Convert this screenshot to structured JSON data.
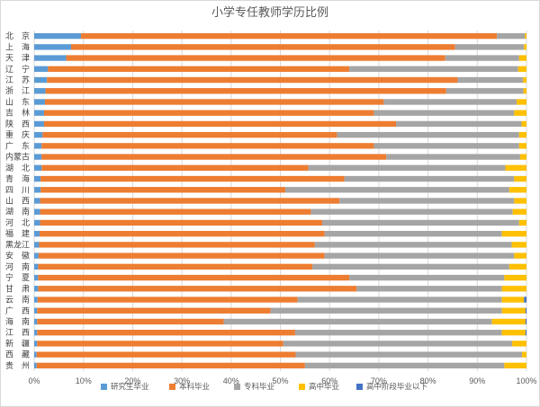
{
  "chart_data": {
    "type": "bar",
    "orientation": "horizontal",
    "stacked": "percent",
    "title": "小学专任教师学历比例",
    "xlim": [
      0,
      100
    ],
    "x_ticks": [
      "0%",
      "10%",
      "20%",
      "30%",
      "40%",
      "50%",
      "60%",
      "70%",
      "80%",
      "90%",
      "100%"
    ],
    "grid": "vertical",
    "legend_position": "bottom",
    "categories": [
      "北　京",
      "上　海",
      "天　津",
      "辽　宁",
      "江　苏",
      "浙　江",
      "山　东",
      "吉　林",
      "陕　西",
      "重　庆",
      "广　东",
      "内蒙古",
      "湖　北",
      "青　海",
      "四　川",
      "山　西",
      "湖　南",
      "河　北",
      "福　建",
      "黑龙江",
      "安　徽",
      "河　南",
      "宁　夏",
      "甘　肃",
      "云　南",
      "广　西",
      "海　南",
      "江　西",
      "新　疆",
      "西　藏",
      "贵　州"
    ],
    "series": [
      {
        "name": "研究生毕业",
        "color": "#5b9bd5",
        "values": [
          9.5,
          7.5,
          6.5,
          2.8,
          2.6,
          2.3,
          2.2,
          2.0,
          2.0,
          1.7,
          1.5,
          1.5,
          1.5,
          1.3,
          1.3,
          1.2,
          1.2,
          1.2,
          1.1,
          1.0,
          0.9,
          0.8,
          0.8,
          0.8,
          0.7,
          0.6,
          0.6,
          0.6,
          0.6,
          0.5,
          0.5
        ]
      },
      {
        "name": "本科毕业",
        "color": "#ed7d31",
        "values": [
          84.5,
          78.0,
          77.0,
          61.2,
          83.4,
          81.4,
          68.8,
          67.0,
          71.5,
          59.8,
          67.5,
          70.0,
          54.2,
          61.7,
          49.7,
          60.8,
          55.0,
          57.3,
          57.9,
          56.0,
          58.1,
          55.7,
          63.2,
          64.7,
          52.8,
          47.4,
          37.9,
          52.4,
          50.0,
          52.6,
          54.5
        ]
      },
      {
        "name": "专科毕业",
        "color": "#a5a5a5",
        "values": [
          5.7,
          14.0,
          15.0,
          34.3,
          13.3,
          15.7,
          27.0,
          28.5,
          25.5,
          37.0,
          29.5,
          27.2,
          40.0,
          34.5,
          45.5,
          35.5,
          41.0,
          40.0,
          36.0,
          40.0,
          38.5,
          40.0,
          31.5,
          29.5,
          41.5,
          47.0,
          54.5,
          42.0,
          46.5,
          46.0,
          40.5
        ]
      },
      {
        "name": "高中毕业",
        "color": "#ffc000",
        "values": [
          0.3,
          0.5,
          1.5,
          1.7,
          0.7,
          0.6,
          2.0,
          2.5,
          1.0,
          1.5,
          1.5,
          1.3,
          4.3,
          2.5,
          3.5,
          2.5,
          2.8,
          1.5,
          5.0,
          3.0,
          2.5,
          3.5,
          4.5,
          5.0,
          4.5,
          4.8,
          6.8,
          4.8,
          2.9,
          0.9,
          4.5
        ]
      },
      {
        "name": "高中阶段毕业以下",
        "color": "#4472c4",
        "values": [
          0,
          0,
          0,
          0,
          0,
          0,
          0,
          0,
          0,
          0,
          0,
          0,
          0,
          0,
          0,
          0,
          0,
          0,
          0,
          0,
          0,
          0,
          0,
          0,
          0.5,
          0.2,
          0.2,
          0.2,
          0,
          0,
          0
        ]
      }
    ]
  }
}
